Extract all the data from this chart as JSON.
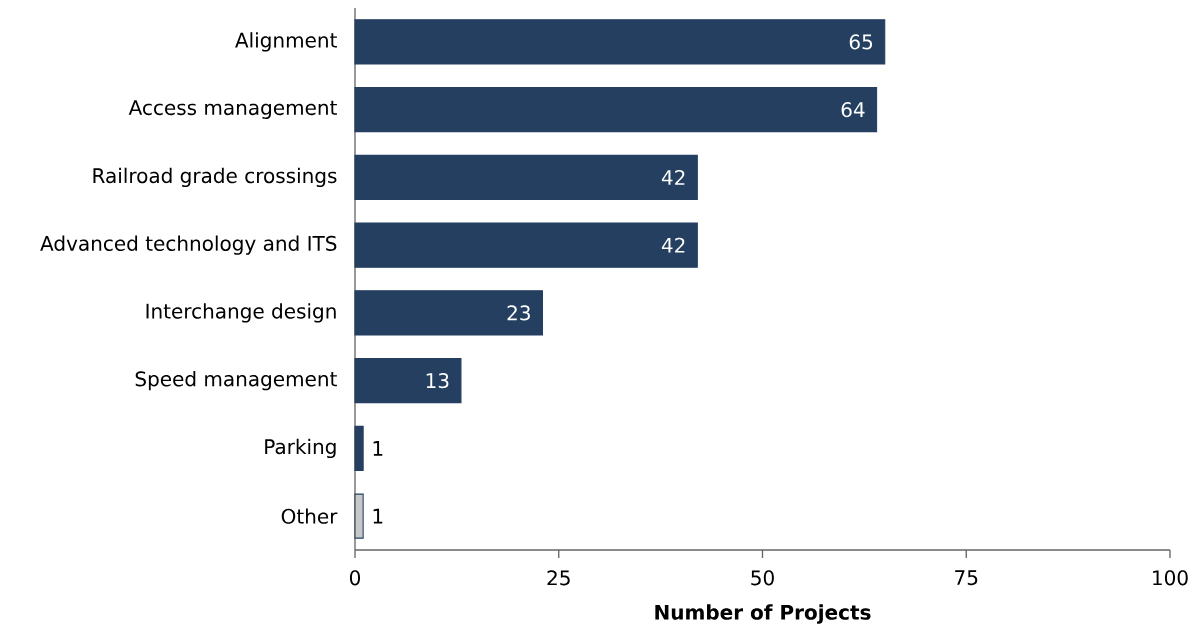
{
  "chart_data": {
    "type": "bar",
    "orientation": "horizontal",
    "xlabel": "Number of Projects",
    "categories": [
      "Alignment",
      "Access management",
      "Railroad grade crossings",
      "Advanced technology and ITS",
      "Interchange design",
      "Speed management",
      "Parking",
      "Other"
    ],
    "values": [
      65,
      64,
      42,
      42,
      23,
      13,
      1,
      1
    ],
    "color": "#243f60",
    "colors": [
      "#243f60",
      "#243f60",
      "#243f60",
      "#243f60",
      "#243f60",
      "#243f60",
      "#243f60",
      "#c8c8c8"
    ],
    "xlim": [
      0,
      100
    ],
    "xticks": [
      0,
      25,
      50,
      75,
      100
    ],
    "data_labels": true,
    "grid": false
  }
}
